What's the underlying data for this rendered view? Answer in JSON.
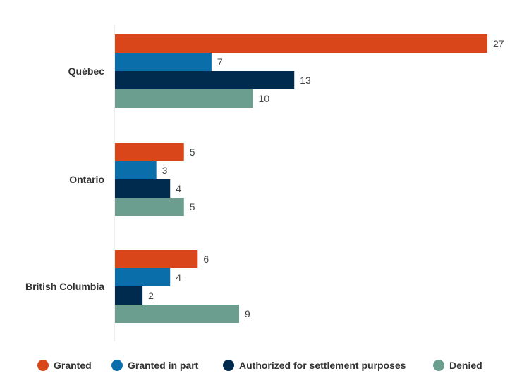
{
  "chart_data": {
    "type": "bar",
    "orientation": "horizontal",
    "categories": [
      "Québec",
      "Ontario",
      "British Columbia"
    ],
    "series": [
      {
        "name": "Granted",
        "color": "#d9461a",
        "values": [
          27,
          5,
          6
        ]
      },
      {
        "name": "Granted in part",
        "color": "#0a6eab",
        "values": [
          7,
          3,
          4
        ]
      },
      {
        "name": "Authorized for settlement purposes",
        "color": "#002b4f",
        "values": [
          13,
          4,
          2
        ]
      },
      {
        "name": "Denied",
        "color": "#6b9e8e",
        "values": [
          10,
          5,
          9
        ]
      }
    ],
    "xlim": [
      0,
      27
    ],
    "grid": false,
    "legend_position": "bottom"
  }
}
